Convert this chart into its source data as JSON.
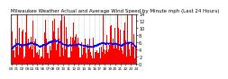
{
  "title": "Milwaukee Weather Actual and Average Wind Speed by Minute mph (Last 24 Hours)",
  "title_fontsize": 4.0,
  "bg_color": "#ffffff",
  "plot_bg_color": "#ffffff",
  "bar_color": "#ff0000",
  "line_color": "#0000ff",
  "n_points": 1440,
  "ylim": [
    0,
    14
  ],
  "yticks": [
    0,
    2,
    4,
    6,
    8,
    10,
    12,
    14
  ],
  "ylabel_fontsize": 3.5,
  "xlabel_fontsize": 3.0,
  "grid_color": "#bbbbbb",
  "bar_alpha": 1.0,
  "line_width": 0.6,
  "line_markersize": 0.8,
  "seed": 42
}
